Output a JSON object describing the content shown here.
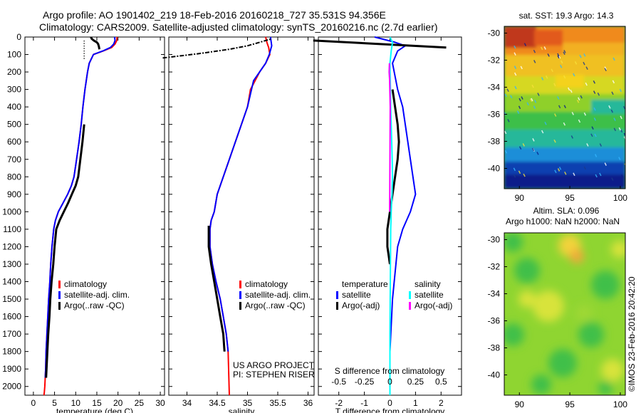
{
  "header": {
    "line1": "Argo profile: AO 1901402_219 18-Feb-2016 20160218_727 35.531S 94.356E",
    "line2": "Climatology: CARS2009. Satellite-adjusted climatology: synTS_20160216.nc (2.7d earlier)"
  },
  "colors": {
    "climatology": "#ff0000",
    "satellite": "#0000ff",
    "argo": "#000000",
    "sal_satellite": "#00ffff",
    "sal_argo": "#ff00ff"
  },
  "chart_data": [
    {
      "id": "temperature",
      "type": "line",
      "xlabel": "temperature (deg C)",
      "xlim": [
        -2,
        31
      ],
      "xticks": [
        0,
        5,
        10,
        15,
        20,
        25,
        30
      ],
      "ylim": [
        2050,
        0
      ],
      "yticks": [
        0,
        100,
        200,
        300,
        400,
        500,
        600,
        700,
        800,
        900,
        1000,
        1100,
        1200,
        1300,
        1400,
        1500,
        1600,
        1700,
        1800,
        1900,
        2000
      ],
      "legend": [
        "climatology",
        "satellite-adj. clim.",
        "Argo(..raw -QC)"
      ],
      "series": [
        {
          "name": "climatology",
          "color": "#ff0000",
          "x": [
            19.8,
            19.7,
            19.3,
            18.5,
            16.5,
            14.2,
            13.2,
            12.8,
            12.2,
            11.7,
            11.3,
            10.8,
            10.2,
            9.6,
            9.0,
            8.1,
            7.0,
            5.9,
            5.2,
            4.8,
            4.4,
            4.1,
            3.9,
            3.6,
            3.4,
            3.2,
            3.0,
            2.9,
            2.8,
            2.7,
            2.6,
            2.5
          ],
          "y": [
            0,
            20,
            40,
            60,
            80,
            100,
            150,
            200,
            300,
            400,
            500,
            600,
            700,
            800,
            850,
            900,
            950,
            1000,
            1050,
            1100,
            1200,
            1300,
            1400,
            1500,
            1600,
            1700,
            1800,
            1900,
            1950,
            2000,
            2030,
            2050
          ]
        },
        {
          "name": "satellite-adj. clim.",
          "color": "#0000ff",
          "x": [
            19.2,
            19.3,
            19.0,
            18.2,
            16.4,
            14.2,
            13.2,
            12.8,
            12.2,
            11.7,
            11.3,
            10.8,
            10.2,
            9.6,
            9.0,
            8.1,
            7.0,
            5.9,
            5.2,
            4.8,
            4.4,
            4.1,
            3.9,
            3.6,
            3.4,
            3.2,
            3.0,
            2.9,
            2.8
          ],
          "y": [
            0,
            20,
            40,
            60,
            80,
            100,
            150,
            200,
            300,
            400,
            500,
            600,
            700,
            800,
            850,
            900,
            950,
            1000,
            1050,
            1100,
            1200,
            1300,
            1400,
            1500,
            1600,
            1700,
            1800,
            1900,
            1950
          ]
        },
        {
          "name": "Argo(..raw -QC)",
          "color": "#000000",
          "x": [
            13.6,
            13.8,
            14.3,
            15.0,
            15.3,
            15.5,
            15.6
          ],
          "y": [
            0,
            10,
            20,
            30,
            40,
            55,
            70
          ]
        },
        {
          "name": "Argo(..raw -QC)",
          "color": "#000000",
          "x": [
            12.0,
            11.6,
            11.1,
            10.6,
            10.0,
            9.1,
            8.2,
            7.2,
            6.2,
            5.4,
            5.0,
            4.7,
            4.3,
            4.0,
            3.8,
            3.5,
            3.3,
            3.1,
            3.0
          ],
          "y": [
            500,
            600,
            700,
            800,
            850,
            900,
            950,
            1000,
            1050,
            1100,
            1200,
            1300,
            1400,
            1500,
            1600,
            1700,
            1800,
            1900,
            1950
          ]
        }
      ],
      "mixed_layer_marker": {
        "x": 12,
        "y_from": 20,
        "y_to": 130
      }
    },
    {
      "id": "salinity",
      "type": "line",
      "xlabel": "salinity",
      "xlim": [
        33.7,
        36.1
      ],
      "xticks": [
        34,
        34.5,
        35,
        35.5,
        36
      ],
      "ylim": [
        2050,
        0
      ],
      "legend": [
        "climatology",
        "satellite-adj. clim.",
        "Argo(..raw -QC)"
      ],
      "annotation": [
        "US ARGO PROJECT",
        "PI: STEPHEN RISER"
      ],
      "series": [
        {
          "name": "climatology",
          "color": "#ff0000",
          "x": [
            35.3,
            35.32,
            35.35,
            35.37,
            35.3,
            35.2,
            35.05,
            35.0,
            34.9,
            34.8,
            34.7,
            34.6,
            34.5,
            34.45,
            34.4,
            34.38,
            34.38,
            34.42,
            34.48,
            34.55,
            34.6,
            34.65,
            34.68,
            34.7
          ],
          "y": [
            0,
            30,
            60,
            100,
            150,
            200,
            300,
            400,
            500,
            600,
            700,
            800,
            900,
            1000,
            1050,
            1100,
            1200,
            1300,
            1400,
            1500,
            1600,
            1700,
            1800,
            2050
          ]
        },
        {
          "name": "satellite-adj. clim.",
          "color": "#0000ff",
          "x": [
            35.38,
            35.4,
            35.36,
            35.3,
            35.2,
            35.1,
            35.0,
            34.9,
            34.8,
            34.7,
            34.6,
            34.5,
            34.45,
            34.4,
            34.38,
            34.38,
            34.42,
            34.48,
            34.55,
            34.6,
            34.65,
            34.68
          ],
          "y": [
            0,
            50,
            100,
            150,
            200,
            250,
            400,
            500,
            600,
            700,
            800,
            900,
            1000,
            1050,
            1100,
            1200,
            1300,
            1400,
            1500,
            1600,
            1700,
            1800
          ]
        },
        {
          "name": "Argo(..raw -QC)",
          "color": "#000000",
          "x": [
            33.6,
            34.2,
            34.7,
            35.0,
            35.2,
            35.4
          ],
          "y": [
            120,
            95,
            70,
            50,
            30,
            10
          ]
        },
        {
          "name": "Argo(..raw -QC)",
          "color": "#000000",
          "x": [
            34.36,
            34.36,
            34.4,
            34.45,
            34.5,
            34.55,
            34.6,
            34.62
          ],
          "y": [
            1080,
            1200,
            1300,
            1400,
            1500,
            1600,
            1700,
            1800
          ]
        }
      ]
    },
    {
      "id": "difference",
      "type": "line",
      "xlabel": "T difference from climatology",
      "xlabel_top": "S difference from climatology",
      "xlim": [
        -2.8,
        2.8
      ],
      "xticks": [
        -2,
        -1,
        0,
        1,
        2
      ],
      "xticks_top": [
        -0.5,
        -0.25,
        0,
        0.25,
        0.5
      ],
      "ylim": [
        2050,
        0
      ],
      "legend_temperature": [
        "temperature",
        "satellite",
        "Argo(-adj)"
      ],
      "legend_salinity": [
        "salinity",
        "satellite",
        "Argo(-adj)"
      ],
      "series": [
        {
          "name": "satellite",
          "color": "#0000ff",
          "x": [
            -0.6,
            0.2,
            0.6,
            0.3,
            0.1,
            0.3,
            0.5,
            0.6,
            0.7,
            0.8,
            0.9,
            1.0,
            0.8,
            0.5,
            0.3,
            0.1,
            0.0,
            0.0
          ],
          "y": [
            0,
            30,
            50,
            80,
            150,
            300,
            400,
            500,
            600,
            700,
            800,
            900,
            1000,
            1100,
            1200,
            1500,
            1800,
            2050
          ]
        },
        {
          "name": "Argo(-adj)",
          "color": "#000000",
          "x": [
            -3.0,
            2.2
          ],
          "y": [
            20,
            60
          ]
        },
        {
          "name": "Argo(-adj)",
          "color": "#000000",
          "x": [
            0.1,
            0.2,
            0.3,
            0.35,
            0.3,
            0.2,
            0.1,
            0.0,
            -0.1,
            -0.1,
            0.0
          ],
          "y": [
            300,
            400,
            500,
            600,
            700,
            800,
            900,
            1000,
            1100,
            1200,
            1300
          ]
        },
        {
          "name": "satellite",
          "color": "#00ffff",
          "x": [
            0.0,
            0.1,
            0.05,
            0.0,
            0.02,
            0.03,
            0.05,
            0.07,
            0.09,
            0.1,
            0.08,
            0.05,
            0.03,
            0.02,
            0.0,
            0.0
          ],
          "y": [
            0,
            30,
            80,
            150,
            300,
            400,
            500,
            600,
            700,
            800,
            900,
            1000,
            1100,
            1300,
            1700,
            2050
          ]
        },
        {
          "name": "Argo(-adj)",
          "color": "#ff00ff",
          "x": [
            -0.02,
            -0.03,
            -0.01,
            0.01,
            0.0,
            -0.01
          ],
          "y": [
            150,
            200,
            250,
            400,
            700,
            1000
          ]
        }
      ]
    },
    {
      "id": "sst-map",
      "type": "heatmap",
      "title": "sat. SST: 19.3 Argo: 14.3",
      "xlim": [
        88.5,
        100.5
      ],
      "ylim": [
        -41.5,
        -29.5
      ],
      "xticks": [
        90,
        95,
        100
      ],
      "yticks": [
        -30,
        -32,
        -34,
        -36,
        -38,
        -40
      ]
    },
    {
      "id": "sla-map",
      "type": "heatmap",
      "title": [
        "Altim. SLA: 0.096",
        "Argo h1000: NaN h2000: NaN"
      ],
      "xlim": [
        88.5,
        100.5
      ],
      "ylim": [
        -41.5,
        -29.5
      ],
      "xticks": [
        90,
        95,
        100
      ],
      "yticks": [
        -30,
        -32,
        -34,
        -36,
        -38,
        -40
      ]
    }
  ],
  "credit": "©IMOS 23-Feb-2016 20:42:20"
}
